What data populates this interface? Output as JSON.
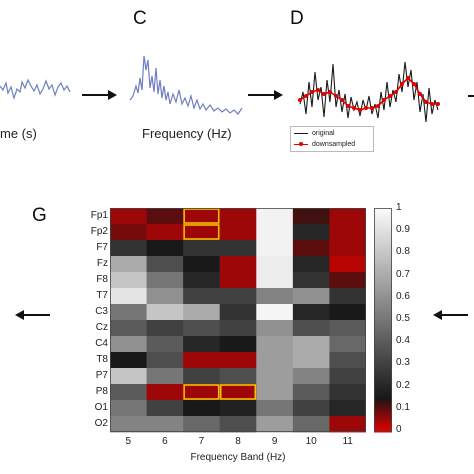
{
  "panels": {
    "b_caption_partial": "me (s)",
    "c_letter": "C",
    "c_caption": "Frequency (Hz)",
    "d_letter": "D",
    "d_legend": [
      "original",
      "downsampled"
    ],
    "g_letter": "G"
  },
  "colors": {
    "signal_blue": "#6f7fc0",
    "original_line": "#1a1a1a",
    "downsampled_line": "#e00000",
    "highlight_box": "#f2c200"
  },
  "heatmap": {
    "title": "",
    "xlabel": "Frequency Band (Hz)",
    "rows": [
      "Fp1",
      "Fp2",
      "F7",
      "Fz",
      "F8",
      "T7",
      "C3",
      "Cz",
      "C4",
      "T8",
      "P7",
      "P8",
      "O1",
      "O2"
    ],
    "columns": [
      "5",
      "6",
      "7",
      "8",
      "9",
      "10",
      "11"
    ],
    "colorbar_ticks": [
      "1",
      "0.9",
      "0.8",
      "0.7",
      "0.6",
      "0.5",
      "0.4",
      "0.3",
      "0.2",
      "0.1",
      "0"
    ],
    "colormap": "red-black-white",
    "values": [
      [
        0.05,
        0.1,
        0.05,
        0.05,
        0.97,
        0.12,
        0.05
      ],
      [
        0.08,
        0.05,
        0.05,
        0.05,
        0.97,
        0.2,
        0.05
      ],
      [
        0.25,
        0.15,
        0.25,
        0.25,
        0.97,
        0.1,
        0.05
      ],
      [
        0.7,
        0.35,
        0.15,
        0.05,
        0.95,
        0.2,
        0.03
      ],
      [
        0.8,
        0.5,
        0.2,
        0.05,
        0.95,
        0.25,
        0.1
      ],
      [
        0.92,
        0.6,
        0.3,
        0.3,
        0.55,
        0.6,
        0.25
      ],
      [
        0.5,
        0.8,
        0.7,
        0.25,
        0.98,
        0.2,
        0.15
      ],
      [
        0.4,
        0.3,
        0.35,
        0.3,
        0.6,
        0.35,
        0.4
      ],
      [
        0.6,
        0.4,
        0.2,
        0.15,
        0.65,
        0.7,
        0.45
      ],
      [
        0.15,
        0.35,
        0.05,
        0.05,
        0.65,
        0.7,
        0.35
      ],
      [
        0.8,
        0.5,
        0.3,
        0.35,
        0.65,
        0.55,
        0.3
      ],
      [
        0.4,
        0.05,
        0.05,
        0.05,
        0.65,
        0.4,
        0.25
      ],
      [
        0.5,
        0.3,
        0.15,
        0.18,
        0.5,
        0.3,
        0.2
      ],
      [
        0.55,
        0.55,
        0.45,
        0.35,
        0.65,
        0.45,
        0.05
      ]
    ],
    "highlighted_cells": [
      [
        0,
        2
      ],
      [
        1,
        2
      ],
      [
        11,
        2
      ],
      [
        11,
        3
      ]
    ]
  }
}
